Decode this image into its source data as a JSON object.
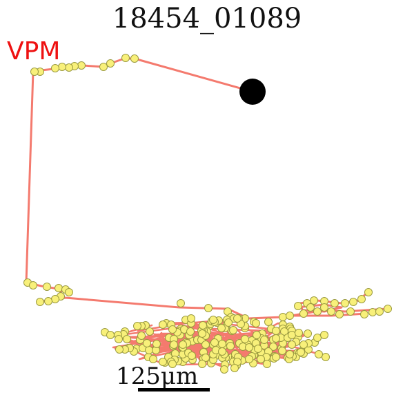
{
  "figure": {
    "title": "18454_01089",
    "region_label": "VPM",
    "scale_label": "125μm"
  },
  "colors": {
    "trace": "#f47a6e",
    "node_fill": "#f8f07a",
    "node_stroke": "#9a9a40",
    "soma": "#000000",
    "region_label": "#ee1111"
  }
}
